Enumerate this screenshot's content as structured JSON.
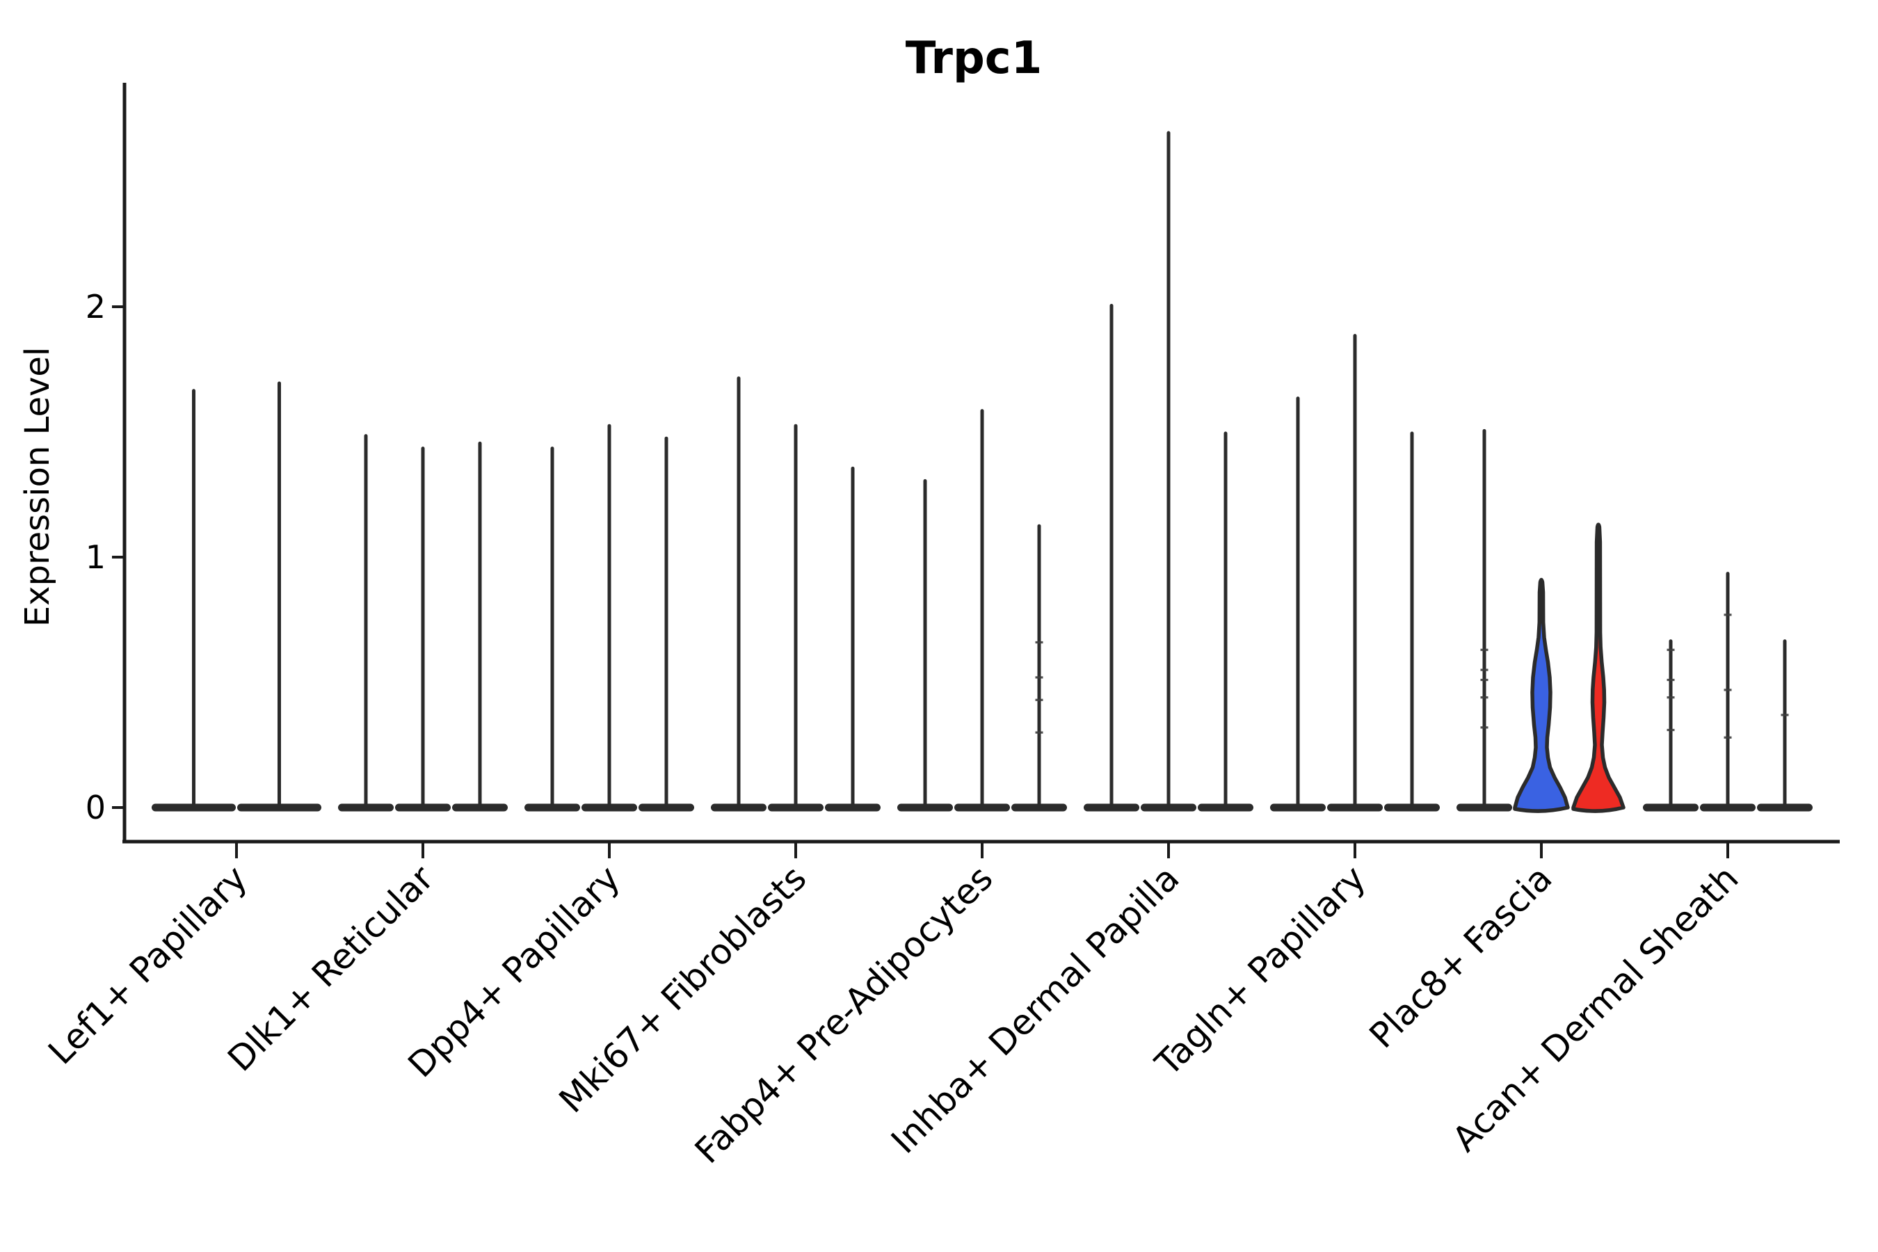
{
  "chart_data": {
    "type": "violin",
    "title": "Trpc1",
    "ylabel": "Expression Level",
    "yticks": [
      {
        "label": "0",
        "value": 0
      },
      {
        "label": "1",
        "value": 1
      },
      {
        "label": "2",
        "value": 2
      }
    ],
    "ylim": [
      0,
      2.9
    ],
    "grid": false,
    "legend": "none",
    "colors": {
      "violin_stroke": "#2b2b2b",
      "axis": "#1a1a1a",
      "highlight_blue": "#3A62E2",
      "highlight_red": "#EE2B23"
    },
    "categories": [
      "Lef1+ Papillary",
      "Dlk1+ Reticular",
      "Dpp4+ Papillary",
      "Mki67+ Fibroblasts",
      "Fabp4+ Pre-Adipocytes",
      "Inhba+ Dermal Papilla",
      "Tagln+ Papillary",
      "Plac8+ Fascia",
      "Acan+ Dermal Sheath"
    ],
    "groups": [
      {
        "label": "Lef1+ Papillary",
        "violins": [
          {
            "max": 1.67,
            "color": "black"
          },
          {
            "max": 1.7,
            "color": "black"
          }
        ]
      },
      {
        "label": "Dlk1+ Reticular",
        "violins": [
          {
            "max": 1.49,
            "color": "black"
          },
          {
            "max": 1.44,
            "color": "black"
          },
          {
            "max": 1.46,
            "color": "black"
          }
        ]
      },
      {
        "label": "Dpp4+ Papillary",
        "violins": [
          {
            "max": 1.44,
            "color": "black"
          },
          {
            "max": 1.53,
            "color": "black"
          },
          {
            "max": 1.48,
            "color": "black"
          }
        ]
      },
      {
        "label": "Mki67+ Fibroblasts",
        "violins": [
          {
            "max": 1.72,
            "color": "black"
          },
          {
            "max": 1.53,
            "color": "black"
          },
          {
            "max": 1.36,
            "color": "black"
          }
        ]
      },
      {
        "label": "Fabp4+ Pre-Adipocytes",
        "violins": [
          {
            "max": 1.31,
            "color": "black"
          },
          {
            "max": 1.59,
            "color": "black"
          },
          {
            "max": 1.13,
            "color": "black",
            "points": [
              0.66,
              0.52,
              0.43,
              0.3
            ]
          }
        ]
      },
      {
        "label": "Inhba+ Dermal Papilla",
        "violins": [
          {
            "max": 2.01,
            "color": "black"
          },
          {
            "max": 2.7,
            "color": "black"
          },
          {
            "max": 1.5,
            "color": "black"
          }
        ]
      },
      {
        "label": "Tagln+ Papillary",
        "violins": [
          {
            "max": 1.64,
            "color": "black"
          },
          {
            "max": 1.89,
            "color": "black"
          },
          {
            "max": 1.5,
            "color": "black"
          }
        ]
      },
      {
        "label": "Plac8+ Fascia",
        "violins": [
          {
            "max": 1.51,
            "color": "black",
            "points": [
              0.63,
              0.55,
              0.51,
              0.44,
              0.32
            ]
          },
          {
            "max": 0.9,
            "color": "blue",
            "fill": "#3A62E2",
            "profile": [
              [
                0.0,
                38
              ],
              [
                0.04,
                34
              ],
              [
                0.08,
                27
              ],
              [
                0.12,
                19
              ],
              [
                0.16,
                12.5
              ],
              [
                0.2,
                9.5
              ],
              [
                0.24,
                8
              ],
              [
                0.28,
                8.5
              ],
              [
                0.33,
                10.5
              ],
              [
                0.4,
                12.5
              ],
              [
                0.46,
                13
              ],
              [
                0.52,
                12
              ],
              [
                0.58,
                9.5
              ],
              [
                0.63,
                6.5
              ],
              [
                0.68,
                4
              ],
              [
                0.74,
                2.7
              ],
              [
                0.86,
                2.5
              ],
              [
                0.9,
                1.5
              ]
            ]
          },
          {
            "max": 1.12,
            "color": "red",
            "fill": "#EE2B23",
            "profile": [
              [
                0.0,
                36
              ],
              [
                0.04,
                31
              ],
              [
                0.08,
                23
              ],
              [
                0.12,
                15
              ],
              [
                0.16,
                9.5
              ],
              [
                0.2,
                6.5
              ],
              [
                0.25,
                5
              ],
              [
                0.3,
                6
              ],
              [
                0.36,
                7.5
              ],
              [
                0.42,
                8.5
              ],
              [
                0.47,
                8.2
              ],
              [
                0.52,
                7
              ],
              [
                0.58,
                4.8
              ],
              [
                0.64,
                3.2
              ],
              [
                0.7,
                2.6
              ],
              [
                1.06,
                2.4
              ],
              [
                1.12,
                1.4
              ]
            ]
          }
        ]
      },
      {
        "label": "Acan+ Dermal Sheath",
        "violins": [
          {
            "max": 0.67,
            "color": "black",
            "points": [
              0.63,
              0.51,
              0.44,
              0.31
            ]
          },
          {
            "max": 0.94,
            "color": "black",
            "points": [
              0.77,
              0.47,
              0.28
            ]
          },
          {
            "max": 0.67,
            "color": "black",
            "points": [
              0.37
            ]
          }
        ]
      }
    ]
  }
}
